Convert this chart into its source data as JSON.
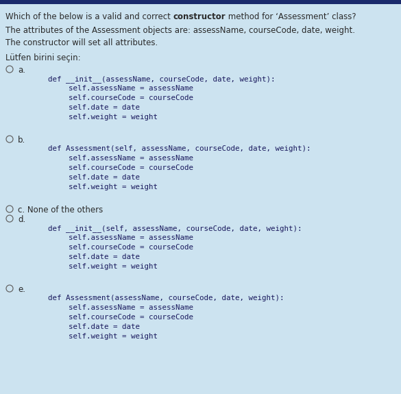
{
  "bg_color": "#cce3f0",
  "header_color": "#1a2a6c",
  "text_color": "#2a2a2a",
  "code_color": "#1a1a5e",
  "t1": "Which of the below is a valid and correct ",
  "t2": "constructor",
  "t3": " method for ‘Assessment’ class?",
  "line2": "The attributes of the Assessment objects are: assessName, courseCode, date, weight.",
  "line3": "The constructor will set all attributes.",
  "lutfen": "Lütfen birini seçin:",
  "options": [
    {
      "label": "a.",
      "code_lines": [
        "def __init__(assessName, courseCode, date, weight):",
        "        self.assessName = assessName",
        "        self.courseCode = courseCode",
        "        self.date = date",
        "        self.weight = weight"
      ]
    },
    {
      "label": "b.",
      "code_lines": [
        "def Assessment(self, assessName, courseCode, date, weight):",
        "        self.assessName = assessName",
        "        self.courseCode = courseCode",
        "        self.date = date",
        "        self.weight = weight"
      ]
    },
    {
      "label": "c. None of the others",
      "code_lines": []
    },
    {
      "label": "d.",
      "code_lines": [
        "def __init__(self, assessName, courseCode, date, weight):",
        "        self.assessName = assessName",
        "        self.courseCode = courseCode",
        "        self.date = date",
        "        self.weight = weight"
      ]
    },
    {
      "label": "e.",
      "code_lines": [
        "def Assessment(assessName, courseCode, date, weight):",
        "        self.assessName = assessName",
        "        self.courseCode = courseCode",
        "        self.date = date",
        "        self.weight = weight"
      ]
    }
  ]
}
